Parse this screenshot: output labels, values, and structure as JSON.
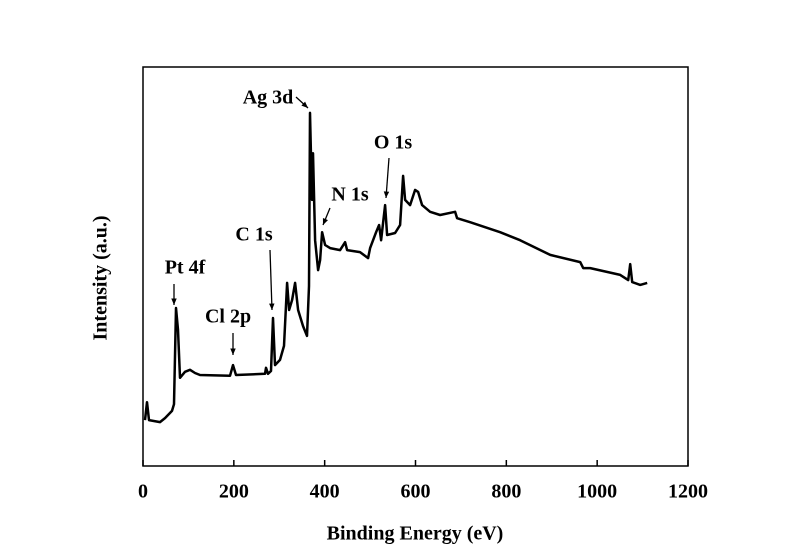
{
  "chart_data": {
    "type": "line",
    "xlabel": "Binding Energy (eV)",
    "ylabel": "Intensity (a.u.)",
    "xlim": [
      0,
      1200
    ],
    "xticks": [
      0,
      200,
      400,
      600,
      800,
      1000,
      1200
    ],
    "ylim": [
      0,
      100
    ],
    "color": "#000000",
    "annotations": [
      "Ag 3d",
      "N 1s",
      "O 1s",
      "C 1s",
      "Pt 4f",
      "Cl 2p"
    ],
    "x": [
      4.4,
      8.8,
      13.2,
      37.4,
      48.5,
      63.9,
      68.3,
      72.7,
      77.1,
      81.5,
      92.5,
      103.5,
      114.5,
      125.5,
      191.6,
      198.2,
      204.8,
      268.7,
      270.9,
      275.3,
      281.9,
      286.3,
      290.7,
      301.7,
      310.5,
      317.2,
      321.6,
      328.2,
      334.8,
      341.4,
      352.4,
      361.2,
      365.6,
      367.8,
      372.2,
      374.4,
      378.9,
      385.5,
      389.9,
      394.3,
      400.9,
      411.9,
      433.9,
      444.9,
      449.3,
      477.9,
      495.6,
      500.0,
      513.2,
      519.8,
      524.2,
      533.0,
      537.4,
      555.1,
      566.1,
      572.7,
      577.1,
      588.1,
      599.1,
      605.7,
      614.5,
      632.2,
      654.2,
      687.2,
      691.6,
      720.3,
      786.3,
      830.4,
      896.5,
      962.6,
      969.2,
      984.6,
      1050.7,
      1068.3,
      1072.7,
      1077.1,
      1094.7,
      1110.1
    ],
    "values": [
      11.5,
      16.0,
      11.5,
      11.0,
      12.0,
      13.8,
      15.5,
      39.6,
      34.1,
      22.1,
      23.6,
      24.1,
      23.3,
      22.8,
      22.6,
      25.3,
      22.8,
      23.1,
      24.6,
      23.1,
      23.8,
      37.1,
      25.3,
      26.6,
      30.1,
      45.9,
      39.1,
      41.6,
      45.9,
      39.1,
      35.1,
      32.6,
      45.1,
      88.5,
      66.7,
      78.4,
      56.6,
      49.1,
      51.6,
      58.6,
      55.4,
      54.6,
      54.1,
      56.1,
      54.1,
      53.6,
      52.1,
      54.6,
      58.6,
      60.4,
      56.6,
      65.4,
      57.9,
      58.4,
      60.4,
      72.7,
      66.7,
      65.4,
      69.2,
      68.7,
      65.4,
      63.7,
      62.9,
      63.7,
      62.1,
      61.1,
      58.6,
      56.6,
      52.9,
      51.1,
      49.6,
      49.6,
      47.9,
      46.6,
      50.6,
      46.1,
      45.4,
      45.9
    ]
  }
}
